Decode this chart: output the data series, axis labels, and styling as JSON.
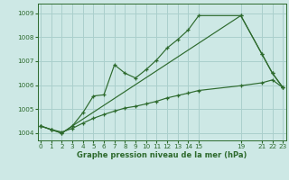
{
  "title": "Graphe pression niveau de la mer (hPa)",
  "background_color": "#cde8e5",
  "grid_color": "#aacfcc",
  "line_color": "#2d6a2d",
  "ylim": [
    1003.7,
    1009.4
  ],
  "xlim": [
    -0.3,
    23.3
  ],
  "yticks": [
    1004,
    1005,
    1006,
    1007,
    1008,
    1009
  ],
  "xticks": [
    0,
    1,
    2,
    3,
    4,
    5,
    6,
    7,
    8,
    9,
    10,
    11,
    12,
    13,
    14,
    15,
    19,
    21,
    22,
    23
  ],
  "series1_x": [
    0,
    1,
    2,
    3,
    4,
    5,
    6,
    7,
    8,
    9,
    10,
    11,
    12,
    13,
    14,
    15,
    19,
    21,
    22,
    23
  ],
  "series1_y": [
    1004.3,
    1004.15,
    1004.0,
    1004.3,
    1004.85,
    1005.55,
    1005.6,
    1006.85,
    1006.5,
    1006.3,
    1006.65,
    1007.05,
    1007.55,
    1007.9,
    1008.3,
    1008.9,
    1008.9,
    1007.3,
    1006.5,
    1005.9
  ],
  "series2_x": [
    0,
    1,
    2,
    3,
    19,
    21,
    22,
    23
  ],
  "series2_y": [
    1004.3,
    1004.15,
    1004.0,
    1004.3,
    1008.9,
    1007.3,
    1006.5,
    1005.9
  ],
  "series3_x": [
    0,
    1,
    2,
    3,
    4,
    5,
    6,
    7,
    8,
    9,
    10,
    11,
    12,
    13,
    14,
    15,
    19,
    21,
    22,
    23
  ],
  "series3_y": [
    1004.3,
    1004.15,
    1004.05,
    1004.2,
    1004.42,
    1004.62,
    1004.78,
    1004.92,
    1005.05,
    1005.12,
    1005.22,
    1005.33,
    1005.47,
    1005.57,
    1005.67,
    1005.78,
    1005.98,
    1006.1,
    1006.22,
    1005.9
  ]
}
